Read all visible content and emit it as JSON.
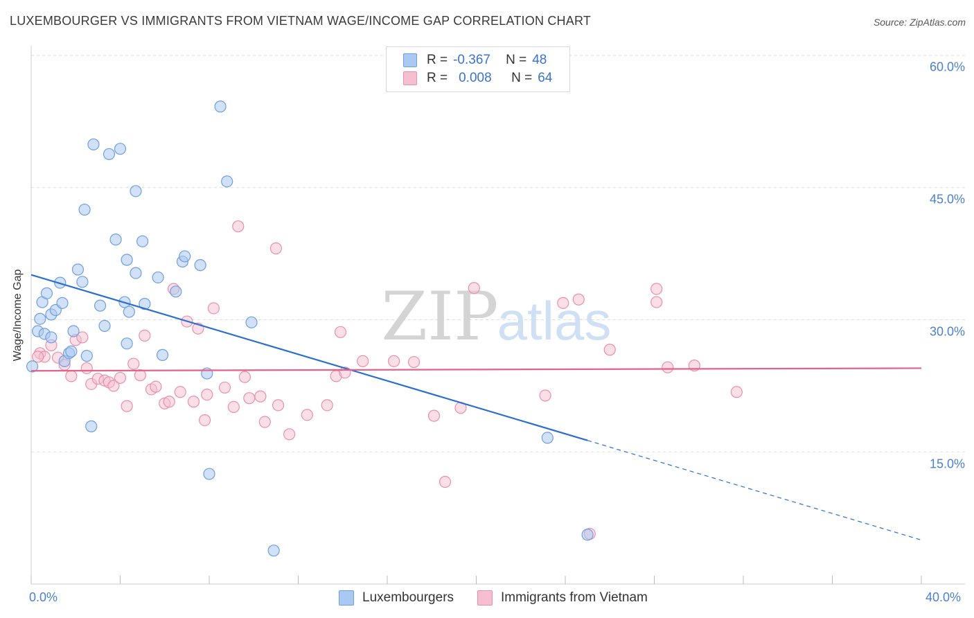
{
  "header": {
    "title": "LUXEMBOURGER VS IMMIGRANTS FROM VIETNAM WAGE/INCOME GAP CORRELATION CHART",
    "source": "Source: ZipAtlas.com"
  },
  "watermark": {
    "zip": "ZIP",
    "atlas": "atlas"
  },
  "legend": {
    "rows": [
      {
        "r_label": "R =",
        "r_value": "-0.367",
        "n_label": "N =",
        "n_value": "48"
      },
      {
        "r_label": "R =",
        "r_value": "0.008",
        "n_label": "N =",
        "n_value": "64"
      }
    ]
  },
  "bottom_legend": {
    "items": [
      {
        "label": "Luxembourgers"
      },
      {
        "label": "Immigrants from Vietnam"
      }
    ]
  },
  "colors": {
    "blue_fill": "#a9c8f2",
    "blue_stroke": "#6f9de0",
    "blue_line": "#2a6fd0",
    "pink_fill": "#f6bfd0",
    "pink_stroke": "#ea8fab",
    "pink_line": "#e2628a",
    "tick_text": "#4a7fd0",
    "grid": "#dddddd"
  },
  "chart_data": {
    "type": "scatter",
    "title": "LUXEMBOURGER VS IMMIGRANTS FROM VIETNAM WAGE/INCOME GAP CORRELATION CHART",
    "xlabel": "",
    "ylabel": "Wage/Income Gap",
    "xlim": [
      0,
      40
    ],
    "ylim": [
      0,
      60
    ],
    "x_tick_labels": [
      "0.0%",
      "40.0%"
    ],
    "y_ticks": [
      15,
      30,
      45,
      60
    ],
    "y_tick_labels": [
      "15.0%",
      "30.0%",
      "45.0%",
      "60.0%"
    ],
    "series": [
      {
        "name": "Luxembourgers",
        "r": -0.367,
        "n": 48,
        "points": [
          [
            0.05,
            24.7
          ],
          [
            0.3,
            28.7
          ],
          [
            0.4,
            30.1
          ],
          [
            0.5,
            32.0
          ],
          [
            0.6,
            28.4
          ],
          [
            0.7,
            33.0
          ],
          [
            0.9,
            28.0
          ],
          [
            0.9,
            30.6
          ],
          [
            1.1,
            31.1
          ],
          [
            1.3,
            34.2
          ],
          [
            1.4,
            31.9
          ],
          [
            1.5,
            25.3
          ],
          [
            1.7,
            26.2
          ],
          [
            1.8,
            26.4
          ],
          [
            1.9,
            28.7
          ],
          [
            2.1,
            35.7
          ],
          [
            2.3,
            34.3
          ],
          [
            2.4,
            42.5
          ],
          [
            2.5,
            25.9
          ],
          [
            2.7,
            17.9
          ],
          [
            2.8,
            49.9
          ],
          [
            3.1,
            31.6
          ],
          [
            3.3,
            29.3
          ],
          [
            3.5,
            48.8
          ],
          [
            3.8,
            39.1
          ],
          [
            4.0,
            49.4
          ],
          [
            4.2,
            32.0
          ],
          [
            4.3,
            36.8
          ],
          [
            4.3,
            27.3
          ],
          [
            4.4,
            30.9
          ],
          [
            4.7,
            35.3
          ],
          [
            4.7,
            44.6
          ],
          [
            5.0,
            38.9
          ],
          [
            5.1,
            31.8
          ],
          [
            5.7,
            34.8
          ],
          [
            5.9,
            26.0
          ],
          [
            6.5,
            33.2
          ],
          [
            6.8,
            36.6
          ],
          [
            6.9,
            37.2
          ],
          [
            7.6,
            36.2
          ],
          [
            7.9,
            23.9
          ],
          [
            8.0,
            12.5
          ],
          [
            8.5,
            54.2
          ],
          [
            8.8,
            45.7
          ],
          [
            9.9,
            29.7
          ],
          [
            10.9,
            3.8
          ],
          [
            23.2,
            16.6
          ],
          [
            25.0,
            5.6
          ]
        ]
      },
      {
        "name": "Immigrants from Vietnam",
        "r": 0.008,
        "n": 64,
        "points": [
          [
            0.4,
            26.2
          ],
          [
            0.6,
            25.8
          ],
          [
            0.9,
            27.1
          ],
          [
            1.2,
            25.7
          ],
          [
            1.5,
            24.9
          ],
          [
            1.8,
            23.6
          ],
          [
            2.0,
            27.7
          ],
          [
            2.3,
            28.0
          ],
          [
            2.5,
            24.5
          ],
          [
            2.7,
            22.7
          ],
          [
            3.0,
            23.3
          ],
          [
            3.3,
            23.1
          ],
          [
            3.5,
            22.9
          ],
          [
            3.7,
            22.5
          ],
          [
            4.0,
            23.4
          ],
          [
            4.3,
            20.2
          ],
          [
            4.6,
            25.0
          ],
          [
            4.9,
            23.7
          ],
          [
            5.1,
            28.2
          ],
          [
            5.4,
            22.1
          ],
          [
            5.6,
            22.4
          ],
          [
            6.0,
            20.5
          ],
          [
            6.2,
            20.7
          ],
          [
            6.4,
            33.5
          ],
          [
            6.7,
            21.8
          ],
          [
            7.0,
            29.8
          ],
          [
            7.3,
            20.7
          ],
          [
            7.5,
            29.0
          ],
          [
            7.8,
            18.6
          ],
          [
            7.9,
            21.5
          ],
          [
            8.2,
            31.3
          ],
          [
            8.7,
            22.3
          ],
          [
            9.1,
            20.1
          ],
          [
            9.3,
            40.6
          ],
          [
            9.6,
            23.5
          ],
          [
            9.8,
            21.1
          ],
          [
            10.3,
            21.3
          ],
          [
            10.5,
            18.4
          ],
          [
            11.1,
            20.3
          ],
          [
            11.0,
            38.1
          ],
          [
            11.6,
            17.0
          ],
          [
            12.4,
            19.2
          ],
          [
            13.3,
            20.3
          ],
          [
            13.7,
            23.6
          ],
          [
            13.9,
            28.6
          ],
          [
            14.1,
            24.0
          ],
          [
            14.9,
            25.3
          ],
          [
            16.3,
            25.3
          ],
          [
            17.2,
            25.2
          ],
          [
            18.1,
            19.1
          ],
          [
            18.6,
            11.6
          ],
          [
            19.3,
            20.0
          ],
          [
            19.9,
            33.6
          ],
          [
            23.1,
            21.4
          ],
          [
            23.9,
            31.9
          ],
          [
            24.6,
            32.3
          ],
          [
            25.1,
            5.7
          ],
          [
            26.0,
            26.6
          ],
          [
            28.1,
            33.5
          ],
          [
            28.1,
            32.0
          ],
          [
            28.6,
            24.6
          ],
          [
            29.8,
            24.8
          ],
          [
            31.7,
            21.8
          ],
          [
            0.3,
            25.8
          ]
        ]
      }
    ],
    "trendlines": [
      {
        "series": "Luxembourgers",
        "x0": 0,
        "y0": 35.1,
        "x1_solid": 25.0,
        "y1_solid": 16.3,
        "x1": 40,
        "y1": 5.0
      },
      {
        "series": "Immigrants from Vietnam",
        "x0": 0,
        "y0": 24.2,
        "x1": 40,
        "y1": 24.5
      }
    ]
  }
}
